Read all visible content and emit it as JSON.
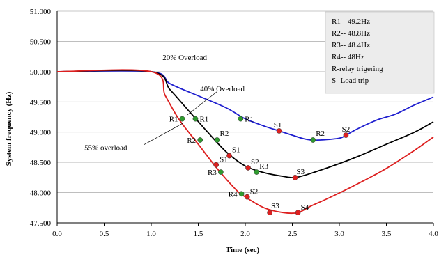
{
  "chart_data": {
    "type": "line",
    "title": "",
    "xlabel": "Time (sec)",
    "ylabel": "System frequency (Hz)",
    "xlim": [
      0.0,
      4.0
    ],
    "ylim": [
      47.5,
      51.0
    ],
    "x_ticks": [
      "0.0",
      "0.5",
      "1.0",
      "1.5",
      "2.0",
      "2.5",
      "3.0",
      "3.5",
      "4.0"
    ],
    "y_ticks": [
      "47.500",
      "48.000",
      "48.500",
      "49.000",
      "49.500",
      "50.000",
      "50.500",
      "51.000"
    ],
    "grid": "horizontal",
    "legend_position": "top-right",
    "legend": [
      "R1-- 49.2Hz",
      "R2-- 48.8Hz",
      "R3-- 48.4Hz",
      "R4-- 48Hz",
      "R-relay trigering",
      "S- Load trip"
    ],
    "series": [
      {
        "name": "20% Overload",
        "color": "#1f1fcf",
        "x": [
          0.0,
          1.0,
          1.2,
          1.5,
          1.8,
          2.0,
          2.2,
          2.36,
          2.5,
          2.6,
          2.7,
          2.8,
          3.0,
          3.07,
          3.2,
          3.4,
          3.6,
          3.8,
          4.0
        ],
        "y": [
          50.0,
          50.0,
          49.8,
          49.6,
          49.4,
          49.22,
          49.1,
          49.02,
          48.95,
          48.9,
          48.87,
          48.87,
          48.9,
          48.95,
          49.06,
          49.2,
          49.3,
          49.45,
          49.58
        ]
      },
      {
        "name": "40% Overload",
        "color": "#000000",
        "x": [
          0.0,
          1.0,
          1.2,
          1.4,
          1.6,
          1.8,
          2.0,
          2.2,
          2.4,
          2.53,
          2.7,
          3.0,
          3.2,
          3.5,
          3.8,
          4.0
        ],
        "y": [
          50.0,
          50.0,
          49.7,
          49.35,
          49.0,
          48.67,
          48.44,
          48.33,
          48.27,
          48.25,
          48.32,
          48.48,
          48.6,
          48.8,
          49.0,
          49.17
        ]
      },
      {
        "name": "55% overload",
        "color": "#dd1f1f",
        "x": [
          0.0,
          1.0,
          1.15,
          1.3,
          1.5,
          1.7,
          1.9,
          2.0,
          2.2,
          2.4,
          2.56,
          2.7,
          2.9,
          3.2,
          3.5,
          3.8,
          4.0
        ],
        "y": [
          50.0,
          50.0,
          49.6,
          49.2,
          48.8,
          48.4,
          48.05,
          47.93,
          47.75,
          47.67,
          47.67,
          47.78,
          47.92,
          48.15,
          48.4,
          48.7,
          48.92
        ]
      }
    ],
    "markers": [
      {
        "x": 1.33,
        "y": 49.22,
        "color": "#2f9a2f",
        "label": "R1",
        "dx": -6,
        "dy": 0,
        "anchor": "end"
      },
      {
        "x": 1.47,
        "y": 49.22,
        "color": "#2f9a2f",
        "label": "R1",
        "dx": 6,
        "dy": 0,
        "anchor": "start"
      },
      {
        "x": 1.95,
        "y": 49.22,
        "color": "#2f9a2f",
        "label": "R1",
        "dx": 6,
        "dy": 0,
        "anchor": "start"
      },
      {
        "x": 1.52,
        "y": 48.87,
        "color": "#2f9a2f",
        "label": "R2",
        "dx": -6,
        "dy": 0,
        "anchor": "end"
      },
      {
        "x": 1.7,
        "y": 48.87,
        "color": "#2f9a2f",
        "label": "R2",
        "dx": 4,
        "dy": -10,
        "anchor": "start"
      },
      {
        "x": 2.72,
        "y": 48.87,
        "color": "#2f9a2f",
        "label": "R2",
        "dx": 4,
        "dy": -10,
        "anchor": "start"
      },
      {
        "x": 1.74,
        "y": 48.34,
        "color": "#2f9a2f",
        "label": "R3",
        "dx": -6,
        "dy": 0,
        "anchor": "end"
      },
      {
        "x": 2.12,
        "y": 48.34,
        "color": "#2f9a2f",
        "label": "R3",
        "dx": 4,
        "dy": -9,
        "anchor": "start"
      },
      {
        "x": 1.96,
        "y": 47.98,
        "color": "#2f9a2f",
        "label": "R4",
        "dx": -6,
        "dy": 0,
        "anchor": "end"
      },
      {
        "x": 2.36,
        "y": 49.02,
        "color": "#dd2020",
        "label": "S1",
        "dx": -2,
        "dy": -9,
        "anchor": "middle"
      },
      {
        "x": 3.07,
        "y": 48.95,
        "color": "#dd2020",
        "label": "S2",
        "dx": 0,
        "dy": -9,
        "anchor": "middle"
      },
      {
        "x": 1.69,
        "y": 48.46,
        "color": "#dd2020",
        "label": "S1",
        "dx": 5,
        "dy": -8,
        "anchor": "start"
      },
      {
        "x": 1.83,
        "y": 48.61,
        "color": "#dd2020",
        "label": "S1",
        "dx": 4,
        "dy": -9,
        "anchor": "start"
      },
      {
        "x": 2.03,
        "y": 48.41,
        "color": "#dd2020",
        "label": "S2",
        "dx": 4,
        "dy": -9,
        "anchor": "start"
      },
      {
        "x": 2.53,
        "y": 48.25,
        "color": "#dd2020",
        "label": "S3",
        "dx": 2,
        "dy": -9,
        "anchor": "start"
      },
      {
        "x": 2.02,
        "y": 47.93,
        "color": "#dd2020",
        "label": "S2",
        "dx": 4,
        "dy": -8,
        "anchor": "start"
      },
      {
        "x": 2.26,
        "y": 47.67,
        "color": "#dd2020",
        "label": "S3",
        "dx": 2,
        "dy": -10,
        "anchor": "start"
      },
      {
        "x": 2.56,
        "y": 47.67,
        "color": "#dd2020",
        "label": "S4",
        "dx": 4,
        "dy": -8,
        "anchor": "start"
      }
    ],
    "annotations": [
      {
        "text": "20% Overload",
        "x": 1.12,
        "y": 50.24
      },
      {
        "text": "40% Overload",
        "x": 1.52,
        "y": 49.72
      },
      {
        "text": "55% overload",
        "x": 0.29,
        "y": 48.75
      }
    ]
  }
}
